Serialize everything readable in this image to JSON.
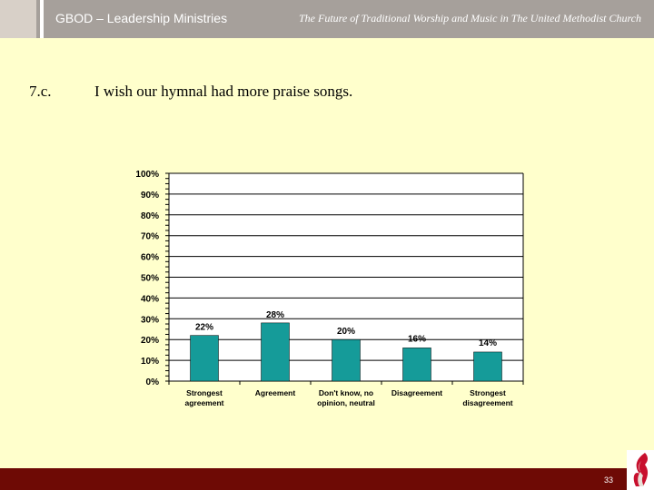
{
  "header": {
    "org": "GBOD – Leadership Ministries",
    "title": "The Future of Traditional Worship and Music in The United Methodist Church"
  },
  "question": {
    "number": "7.c.",
    "text": "I wish our hymnal had more praise songs."
  },
  "footer": {
    "page": "33"
  },
  "colors": {
    "bar": "#159b99",
    "header": "#a6a09b",
    "footer": "#6e0a05",
    "background": "#ffffcc"
  },
  "chart_data": {
    "type": "bar",
    "title": "",
    "xlabel": "",
    "ylabel": "",
    "categories": [
      [
        "Strongest",
        "agreement"
      ],
      [
        "Agreement"
      ],
      [
        "Don't know, no",
        "opinion, neutral"
      ],
      [
        "Disagreement"
      ],
      [
        "Strongest",
        "disagreement"
      ]
    ],
    "values": [
      22,
      28,
      20,
      16,
      14
    ],
    "value_labels": [
      "22%",
      "28%",
      "20%",
      "16%",
      "14%"
    ],
    "yticks": [
      "0%",
      "10%",
      "20%",
      "30%",
      "40%",
      "50%",
      "60%",
      "70%",
      "80%",
      "90%",
      "100%"
    ],
    "ylim": [
      0,
      100
    ],
    "grid": true,
    "legend": "none"
  }
}
